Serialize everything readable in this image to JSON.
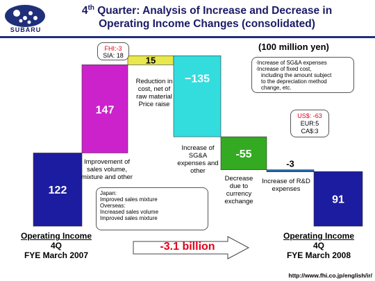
{
  "header": {
    "title_quarter": "4",
    "title_sup": "th",
    "title_line1_rest": " Quarter: Analysis of Increase and Decrease in",
    "title_line2": "Operating Income Changes (consolidated)",
    "logo_text": "SUBARU"
  },
  "unit": "(100 million yen)",
  "chart_data": {
    "type": "waterfall",
    "unit": "100 million yen",
    "steps": [
      {
        "label": "122",
        "value": 122,
        "kind": "total",
        "color": "#1c1ca0"
      },
      {
        "label": "147",
        "value": 147,
        "kind": "change",
        "color": "#cc22cc"
      },
      {
        "label": "15",
        "value": 15,
        "kind": "change",
        "color": "#e8e84a"
      },
      {
        "label": "−135",
        "value": -135,
        "kind": "change",
        "color": "#33dddd"
      },
      {
        "label": "-55",
        "value": -55,
        "kind": "change",
        "color": "#33aa22"
      },
      {
        "label": "-3",
        "value": -3,
        "kind": "change",
        "color": "#2266aa"
      },
      {
        "label": "91",
        "value": 91,
        "kind": "total",
        "color": "#1c1ca0"
      }
    ]
  },
  "labels": {
    "improvement": "Improvement of sales volume, mixture and other",
    "reduction": "Reduction in cost, net of raw material Price raise",
    "sga": "Increase of SG&A expenses and other",
    "currency": "Decrease due to currency exchange",
    "rd": "Increase of R&D expenses"
  },
  "bubbles": {
    "fhi": {
      "line1": "FHI:-3",
      "line2": "SIA: 18"
    },
    "sga_note": [
      "·Increase of SG&A expenses",
      "·Increase of fixed cost,",
      "including the amount subject",
      "to the depreciation method",
      "change, etc."
    ],
    "fx": {
      "usd": "US$: -63",
      "eur": "EUR:5",
      "cad": "CA$:3"
    },
    "japan": [
      "Japan:",
      "Improved sales mixture",
      "Overseas:",
      "Increased sales volume",
      "Improved sales mixture"
    ]
  },
  "footer": {
    "left_title": "Operating Income",
    "left_q": "4Q",
    "left_fye": "FYE March 2007",
    "right_title": "Operating Income",
    "right_q": "4Q",
    "right_fye": "FYE March 2008",
    "change": "-3.1 billion",
    "url": "http://www.fhi.co.jp/english/ir/"
  }
}
